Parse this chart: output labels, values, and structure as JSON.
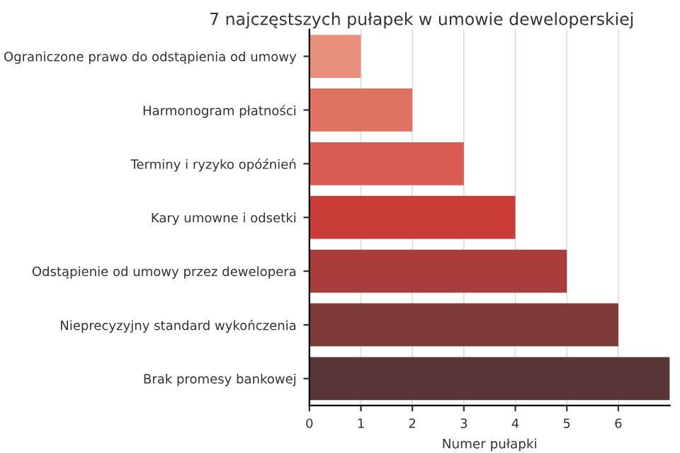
{
  "chart_data": {
    "type": "bar",
    "orientation": "horizontal",
    "title": "7 najczęstszych pułapek w umowie deweloperskiej",
    "xlabel": "Numer pułapki",
    "categories": [
      "Ograniczone prawo do odstąpienia od umowy",
      "Harmonogram płatności",
      "Terminy i ryzyko opóźnień",
      "Kary umowne i odsetki",
      "Odstąpienie od umowy przez dewelopera",
      "Nieprecyzyjny standard wykończenia",
      "Brak promesy bankowej"
    ],
    "values": [
      1,
      2,
      3,
      4,
      5,
      6,
      7
    ],
    "colors": [
      "#e8907c",
      "#e07262",
      "#d85c52",
      "#c93d36",
      "#a83d3b",
      "#7e3a36",
      "#5a3536"
    ],
    "xlim": [
      0,
      7
    ],
    "xticks": [
      0,
      1,
      2,
      3,
      4,
      5,
      6
    ],
    "grid": "x",
    "legend": false
  }
}
